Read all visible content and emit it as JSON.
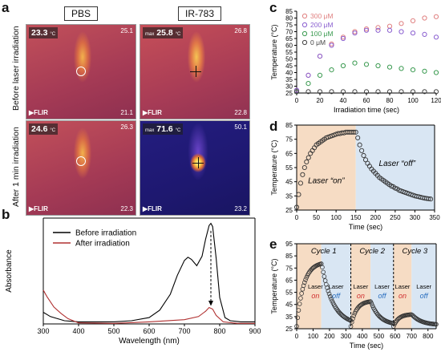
{
  "panels": {
    "a": "a",
    "b": "b",
    "c": "c",
    "d": "d",
    "e": "e"
  },
  "panel_a": {
    "columns": [
      "PBS",
      "IR-783"
    ],
    "rows": [
      "Before laser irradiation",
      "After 1 min irradiation"
    ],
    "flir_logo": "FLIR",
    "images": [
      {
        "readout": "23.3",
        "unit": "°C",
        "max_scale": "25.1",
        "min_scale": "21.1",
        "prefix": ""
      },
      {
        "readout": "25.8",
        "unit": "°C",
        "max_scale": "26.8",
        "min_scale": "22.8",
        "prefix": "max"
      },
      {
        "readout": "24.6",
        "unit": "°C",
        "max_scale": "26.3",
        "min_scale": "22.3",
        "prefix": ""
      },
      {
        "readout": "71.6",
        "unit": "°C",
        "max_scale": "50.1",
        "min_scale": "23.2",
        "prefix": "max"
      }
    ],
    "colors": {
      "warm_bg": "#b2484f",
      "hot": "#ffd34a",
      "cool_bg": "#1f1b78"
    }
  },
  "chart_data": [
    {
      "panel": "b",
      "type": "line",
      "xlabel": "Wavelength (nm)",
      "ylabel": "Absorbance",
      "xlim": [
        300,
        900
      ],
      "xticks": [
        300,
        400,
        500,
        600,
        700,
        800,
        900
      ],
      "ylim": [
        0,
        1
      ],
      "legend": "top-left",
      "series": [
        {
          "name": "Before irradiation",
          "color": "#000000",
          "x": [
            300,
            320,
            340,
            360,
            380,
            400,
            450,
            500,
            550,
            600,
            630,
            660,
            680,
            700,
            710,
            720,
            735,
            750,
            760,
            770,
            775,
            780,
            790,
            800,
            815,
            830,
            860,
            900
          ],
          "y": [
            0.11,
            0.07,
            0.05,
            0.03,
            0.025,
            0.02,
            0.02,
            0.02,
            0.03,
            0.06,
            0.13,
            0.28,
            0.46,
            0.6,
            0.63,
            0.61,
            0.55,
            0.64,
            0.8,
            0.93,
            0.95,
            0.92,
            0.62,
            0.25,
            0.06,
            0.03,
            0.02,
            0.02
          ]
        },
        {
          "name": "After irradiation",
          "color": "#b03030",
          "x": [
            300,
            310,
            330,
            350,
            370,
            400,
            500,
            600,
            700,
            740,
            760,
            770,
            780,
            790,
            810,
            850,
            900
          ],
          "y": [
            0.32,
            0.26,
            0.16,
            0.1,
            0.05,
            0.01,
            0.005,
            0.02,
            0.04,
            0.07,
            0.12,
            0.155,
            0.14,
            0.08,
            0.02,
            0.005,
            0.005
          ]
        }
      ],
      "annotation": "dashed arrow at 775 nm from 0.93 down to 0.16"
    },
    {
      "panel": "c",
      "type": "scatter",
      "xlabel": "Irradiation time (sec)",
      "ylabel": "Temperature (°C)",
      "xlim": [
        0,
        120
      ],
      "xticks": [
        0,
        20,
        40,
        60,
        80,
        100,
        120
      ],
      "ylim": [
        25,
        85
      ],
      "yticks": [
        25,
        30,
        35,
        40,
        45,
        50,
        55,
        60,
        65,
        70,
        75,
        80,
        85
      ],
      "legend": "top-left",
      "x": [
        0,
        10,
        20,
        30,
        40,
        50,
        60,
        70,
        80,
        90,
        100,
        110,
        120
      ],
      "series": [
        {
          "name": "300 μM",
          "color": "#e08080",
          "values": [
            27,
            38,
            52,
            61,
            66,
            70,
            72,
            73,
            74,
            76,
            78,
            80,
            81
          ]
        },
        {
          "name": "200 μM",
          "color": "#8a5fd0",
          "values": [
            27,
            38,
            52,
            60,
            65,
            69,
            71,
            71,
            71,
            70,
            69,
            68,
            66
          ]
        },
        {
          "name": "100 μM",
          "color": "#3a9a50",
          "values": [
            26,
            32,
            38,
            42,
            45,
            47,
            46,
            45,
            44,
            43,
            42,
            41,
            40
          ]
        },
        {
          "name": "0 μM",
          "color": "#444444",
          "values": [
            26,
            26,
            26,
            26,
            26,
            26,
            26,
            26,
            26,
            26,
            26,
            26,
            26
          ]
        }
      ]
    },
    {
      "panel": "d",
      "type": "scatter",
      "xlabel": "Time (sec)",
      "ylabel": "Temperature (°C)",
      "xlim": [
        0,
        350
      ],
      "xticks": [
        0,
        50,
        100,
        150,
        200,
        250,
        300,
        350
      ],
      "ylim": [
        25,
        85
      ],
      "yticks": [
        25,
        35,
        45,
        55,
        65,
        75,
        85
      ],
      "regions": [
        {
          "label": "Laser “on”",
          "from": 0,
          "to": 150,
          "color": "#f6dcc4"
        },
        {
          "label": "Laser “off”",
          "from": 150,
          "to": 350,
          "color": "#d9e6f3"
        }
      ],
      "x": [
        0,
        5,
        10,
        15,
        20,
        25,
        30,
        35,
        40,
        45,
        50,
        55,
        60,
        65,
        70,
        75,
        80,
        85,
        90,
        95,
        100,
        105,
        110,
        115,
        120,
        125,
        130,
        135,
        140,
        145,
        150,
        155,
        160,
        165,
        170,
        175,
        180,
        185,
        190,
        195,
        200,
        205,
        210,
        215,
        220,
        225,
        230,
        235,
        240,
        245,
        250,
        255,
        260,
        265,
        270,
        275,
        280,
        285,
        290,
        295,
        300,
        305,
        310,
        315,
        320,
        325,
        330,
        335,
        340
      ],
      "values": [
        27,
        36,
        44,
        50,
        55,
        59,
        62,
        65,
        67,
        69,
        71,
        72,
        73,
        74,
        75,
        76,
        76.5,
        77,
        77.5,
        78,
        78.5,
        79,
        79,
        79.5,
        79.5,
        80,
        80,
        80,
        80,
        80,
        80,
        76,
        71,
        67,
        63.5,
        60.5,
        58,
        56,
        54,
        52.5,
        51,
        49.5,
        48,
        47,
        46,
        45,
        44,
        43,
        42,
        41.5,
        40.5,
        40,
        39,
        38.5,
        38,
        37.5,
        37,
        36.5,
        36,
        35.5,
        35,
        34.7,
        34.4,
        34,
        33.7,
        33.4,
        33.2,
        33,
        32.8
      ]
    },
    {
      "panel": "e",
      "type": "scatter",
      "xlabel": "Time (sec)",
      "ylabel": "Temperature (°C)",
      "xlim": [
        0,
        850
      ],
      "xticks": [
        0,
        100,
        200,
        300,
        400,
        500,
        600,
        700,
        800
      ],
      "ylim": [
        25,
        95
      ],
      "yticks": [
        25,
        35,
        45,
        55,
        65,
        75,
        85,
        95
      ],
      "cycles": [
        "Cycle 1",
        "Cycle 2",
        "Cycle 3"
      ],
      "regions": [
        {
          "on_label": "Laser",
          "on_word": "on",
          "off_label": "Laser",
          "off_word": "off"
        }
      ],
      "region_bounds": [
        [
          0,
          150,
          330
        ],
        [
          330,
          450,
          590
        ],
        [
          590,
          700,
          850
        ]
      ],
      "peaks": [
        80,
        48,
        37
      ]
    }
  ]
}
